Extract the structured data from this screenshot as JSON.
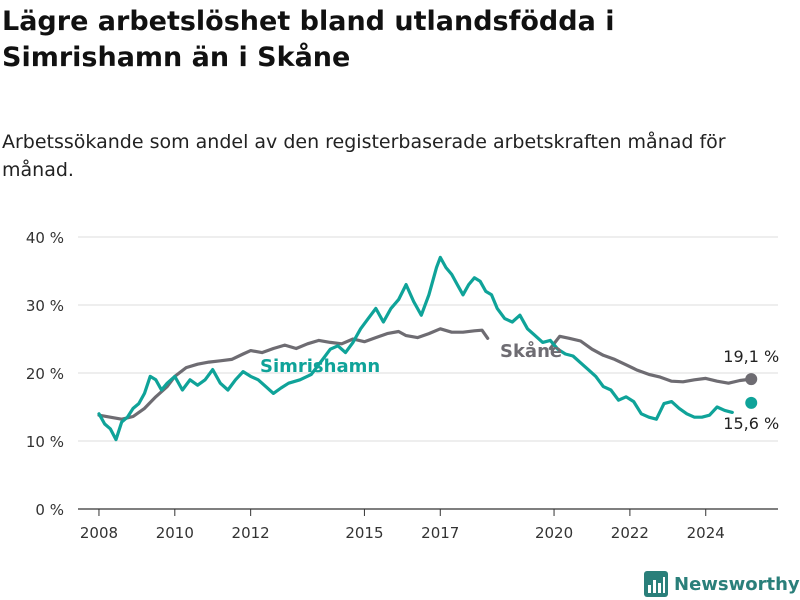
{
  "title": "Lägre arbetslöshet bland utlandsfödda i Simrishamn än i Skåne",
  "subtitle": "Arbetssökande som andel av den registerbaserade arbetskraften månad för månad.",
  "brand": {
    "name": "Newsworthy",
    "icon": "bar-chart-logo"
  },
  "colors": {
    "simrishamn": "#0fa399",
    "skane": "#6e6c72",
    "grid": "#dddddd",
    "axis": "#333333"
  },
  "chart_data": {
    "type": "line",
    "ylim": [
      0,
      40
    ],
    "xlim": [
      2007.5,
      2025.8
    ],
    "yticks": [
      0,
      10,
      20,
      30,
      40
    ],
    "ytick_labels": [
      "0 %",
      "10 %",
      "20 %",
      "30 %",
      "40 %"
    ],
    "xticks": [
      2008,
      2010,
      2012,
      2015,
      2017,
      2020,
      2022,
      2024
    ],
    "xtick_labels": [
      "2008",
      "2010",
      "2012",
      "2015",
      "2017",
      "2020",
      "2022",
      "2024"
    ],
    "grid": true,
    "series": [
      {
        "name": "Skåne",
        "end_label": "19,1 %",
        "gap": [
          2018.25,
          2019.9
        ],
        "points": [
          [
            2008.0,
            13.8
          ],
          [
            2008.3,
            13.5
          ],
          [
            2008.6,
            13.2
          ],
          [
            2008.9,
            13.6
          ],
          [
            2009.2,
            14.8
          ],
          [
            2009.5,
            16.5
          ],
          [
            2009.8,
            18.0
          ],
          [
            2010.0,
            19.5
          ],
          [
            2010.3,
            20.8
          ],
          [
            2010.6,
            21.3
          ],
          [
            2010.9,
            21.6
          ],
          [
            2011.2,
            21.8
          ],
          [
            2011.5,
            22.0
          ],
          [
            2011.8,
            22.8
          ],
          [
            2012.0,
            23.3
          ],
          [
            2012.3,
            23.0
          ],
          [
            2012.6,
            23.6
          ],
          [
            2012.9,
            24.1
          ],
          [
            2013.2,
            23.6
          ],
          [
            2013.5,
            24.3
          ],
          [
            2013.8,
            24.8
          ],
          [
            2014.1,
            24.5
          ],
          [
            2014.4,
            24.3
          ],
          [
            2014.7,
            25.0
          ],
          [
            2015.0,
            24.6
          ],
          [
            2015.3,
            25.2
          ],
          [
            2015.6,
            25.8
          ],
          [
            2015.9,
            26.1
          ],
          [
            2016.1,
            25.5
          ],
          [
            2016.4,
            25.2
          ],
          [
            2016.7,
            25.8
          ],
          [
            2017.0,
            26.5
          ],
          [
            2017.3,
            26.0
          ],
          [
            2017.6,
            26.0
          ],
          [
            2017.9,
            26.2
          ],
          [
            2018.1,
            26.3
          ],
          [
            2018.25,
            25.1
          ],
          [
            2019.9,
            23.6
          ],
          [
            2020.15,
            25.4
          ],
          [
            2020.4,
            25.1
          ],
          [
            2020.7,
            24.7
          ],
          [
            2021.0,
            23.5
          ],
          [
            2021.3,
            22.6
          ],
          [
            2021.6,
            22.0
          ],
          [
            2021.9,
            21.2
          ],
          [
            2022.2,
            20.4
          ],
          [
            2022.5,
            19.8
          ],
          [
            2022.8,
            19.4
          ],
          [
            2023.1,
            18.8
          ],
          [
            2023.4,
            18.7
          ],
          [
            2023.7,
            19.0
          ],
          [
            2024.0,
            19.2
          ],
          [
            2024.3,
            18.8
          ],
          [
            2024.6,
            18.5
          ],
          [
            2024.9,
            18.9
          ],
          [
            2025.2,
            19.1
          ]
        ]
      },
      {
        "name": "Simrishamn",
        "end_label": "15,6 %",
        "gap": [
          2024.7,
          2025.2
        ],
        "points": [
          [
            2008.0,
            14.0
          ],
          [
            2008.15,
            12.5
          ],
          [
            2008.3,
            11.8
          ],
          [
            2008.45,
            10.2
          ],
          [
            2008.6,
            12.8
          ],
          [
            2008.75,
            13.5
          ],
          [
            2008.9,
            14.8
          ],
          [
            2009.05,
            15.5
          ],
          [
            2009.2,
            17.0
          ],
          [
            2009.35,
            19.5
          ],
          [
            2009.5,
            19.0
          ],
          [
            2009.65,
            17.5
          ],
          [
            2009.8,
            18.5
          ],
          [
            2010.0,
            19.5
          ],
          [
            2010.2,
            17.5
          ],
          [
            2010.4,
            19.0
          ],
          [
            2010.6,
            18.2
          ],
          [
            2010.8,
            19.0
          ],
          [
            2011.0,
            20.5
          ],
          [
            2011.2,
            18.5
          ],
          [
            2011.4,
            17.5
          ],
          [
            2011.6,
            19.0
          ],
          [
            2011.8,
            20.2
          ],
          [
            2012.0,
            19.5
          ],
          [
            2012.2,
            19.0
          ],
          [
            2012.4,
            18.0
          ],
          [
            2012.6,
            17.0
          ],
          [
            2012.8,
            17.8
          ],
          [
            2013.0,
            18.5
          ],
          [
            2013.3,
            19.0
          ],
          [
            2013.6,
            19.8
          ],
          [
            2013.9,
            22.0
          ],
          [
            2014.1,
            23.5
          ],
          [
            2014.3,
            24.0
          ],
          [
            2014.5,
            23.0
          ],
          [
            2014.7,
            24.5
          ],
          [
            2014.9,
            26.5
          ],
          [
            2015.1,
            28.0
          ],
          [
            2015.3,
            29.5
          ],
          [
            2015.5,
            27.5
          ],
          [
            2015.7,
            29.5
          ],
          [
            2015.9,
            30.8
          ],
          [
            2016.1,
            33.0
          ],
          [
            2016.3,
            30.5
          ],
          [
            2016.5,
            28.5
          ],
          [
            2016.7,
            31.5
          ],
          [
            2016.9,
            35.5
          ],
          [
            2017.0,
            37.0
          ],
          [
            2017.15,
            35.5
          ],
          [
            2017.3,
            34.5
          ],
          [
            2017.45,
            33.0
          ],
          [
            2017.6,
            31.5
          ],
          [
            2017.75,
            33.0
          ],
          [
            2017.9,
            34.0
          ],
          [
            2018.05,
            33.5
          ],
          [
            2018.2,
            32.0
          ],
          [
            2018.35,
            31.5
          ],
          [
            2018.5,
            29.5
          ],
          [
            2018.7,
            28.0
          ],
          [
            2018.9,
            27.5
          ],
          [
            2019.1,
            28.5
          ],
          [
            2019.3,
            26.5
          ],
          [
            2019.5,
            25.5
          ],
          [
            2019.7,
            24.5
          ],
          [
            2019.9,
            24.8
          ],
          [
            2020.1,
            23.5
          ],
          [
            2020.3,
            22.8
          ],
          [
            2020.5,
            22.5
          ],
          [
            2020.7,
            21.5
          ],
          [
            2020.9,
            20.5
          ],
          [
            2021.1,
            19.5
          ],
          [
            2021.3,
            18.0
          ],
          [
            2021.5,
            17.5
          ],
          [
            2021.7,
            16.0
          ],
          [
            2021.9,
            16.5
          ],
          [
            2022.1,
            15.8
          ],
          [
            2022.3,
            14.0
          ],
          [
            2022.5,
            13.5
          ],
          [
            2022.7,
            13.2
          ],
          [
            2022.9,
            15.5
          ],
          [
            2023.1,
            15.8
          ],
          [
            2023.3,
            14.8
          ],
          [
            2023.5,
            14.0
          ],
          [
            2023.7,
            13.5
          ],
          [
            2023.9,
            13.5
          ],
          [
            2024.1,
            13.8
          ],
          [
            2024.3,
            15.0
          ],
          [
            2024.5,
            14.5
          ],
          [
            2024.7,
            14.2
          ],
          [
            2025.2,
            15.6
          ]
        ]
      }
    ]
  }
}
